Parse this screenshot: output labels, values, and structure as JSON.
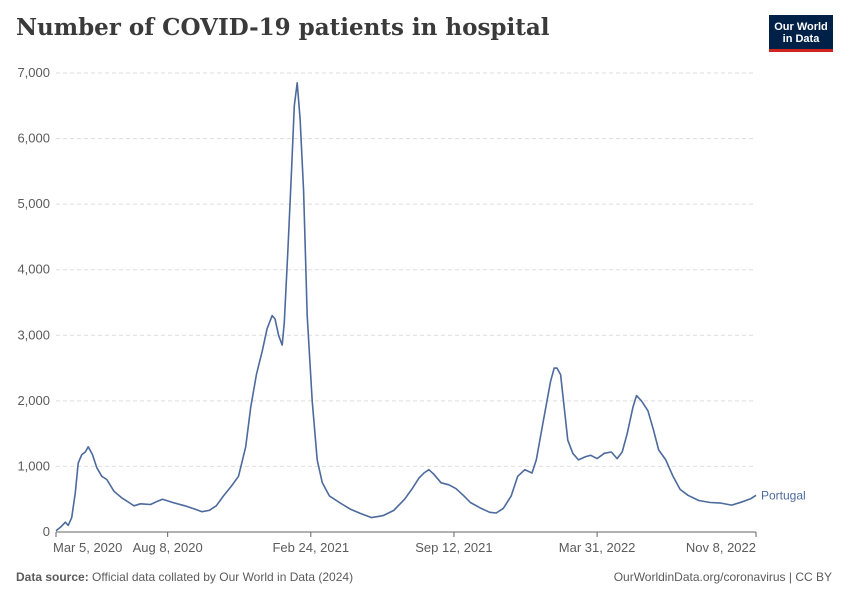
{
  "title": "Number of COVID-19 patients in hospital",
  "logo": {
    "line1": "Our World",
    "line2": "in Data"
  },
  "footer": {
    "source_label": "Data source:",
    "source_text": "Official data collated by Our World in Data (2024)",
    "right_text": "OurWorldinData.org/coronavirus | CC BY"
  },
  "colors": {
    "series": "#4c6a9c",
    "grid": "#dddddd",
    "axis": "#666666",
    "text": "#5b5b5b"
  },
  "chart_data": {
    "type": "line",
    "title": "Number of COVID-19 patients in hospital",
    "xlabel": "",
    "ylabel": "",
    "ylim": [
      0,
      7000
    ],
    "xlim": [
      "2020-03-05",
      "2022-11-08"
    ],
    "grid": true,
    "y_ticks": [
      0,
      1000,
      2000,
      3000,
      4000,
      5000,
      6000,
      7000
    ],
    "y_tick_labels": [
      "0",
      "1,000",
      "2,000",
      "3,000",
      "4,000",
      "5,000",
      "6,000",
      "7,000"
    ],
    "x_ticks": [
      "2020-03-05",
      "2020-08-08",
      "2021-02-24",
      "2021-09-12",
      "2022-03-31",
      "2022-11-08"
    ],
    "x_tick_labels": [
      "Mar 5, 2020",
      "Aug 8, 2020",
      "Feb 24, 2021",
      "Sep 12, 2021",
      "Mar 31, 2022",
      "Nov 8, 2022"
    ],
    "series": [
      {
        "name": "Portugal",
        "points": [
          [
            "2020-03-05",
            20
          ],
          [
            "2020-03-12",
            80
          ],
          [
            "2020-03-18",
            150
          ],
          [
            "2020-03-22",
            100
          ],
          [
            "2020-03-27",
            220
          ],
          [
            "2020-04-01",
            600
          ],
          [
            "2020-04-05",
            1050
          ],
          [
            "2020-04-10",
            1180
          ],
          [
            "2020-04-15",
            1220
          ],
          [
            "2020-04-19",
            1300
          ],
          [
            "2020-04-25",
            1180
          ],
          [
            "2020-05-01",
            980
          ],
          [
            "2020-05-08",
            850
          ],
          [
            "2020-05-15",
            800
          ],
          [
            "2020-05-25",
            620
          ],
          [
            "2020-06-05",
            520
          ],
          [
            "2020-06-15",
            450
          ],
          [
            "2020-06-22",
            400
          ],
          [
            "2020-07-01",
            430
          ],
          [
            "2020-07-15",
            420
          ],
          [
            "2020-07-25",
            470
          ],
          [
            "2020-08-01",
            500
          ],
          [
            "2020-08-15",
            450
          ],
          [
            "2020-09-01",
            400
          ],
          [
            "2020-09-15",
            350
          ],
          [
            "2020-09-25",
            310
          ],
          [
            "2020-10-05",
            330
          ],
          [
            "2020-10-15",
            400
          ],
          [
            "2020-10-25",
            550
          ],
          [
            "2020-11-05",
            700
          ],
          [
            "2020-11-15",
            850
          ],
          [
            "2020-11-25",
            1300
          ],
          [
            "2020-12-02",
            1900
          ],
          [
            "2020-12-10",
            2400
          ],
          [
            "2020-12-18",
            2750
          ],
          [
            "2020-12-25",
            3100
          ],
          [
            "2021-01-01",
            3300
          ],
          [
            "2021-01-05",
            3250
          ],
          [
            "2021-01-10",
            3000
          ],
          [
            "2021-01-15",
            2850
          ],
          [
            "2021-01-18",
            3200
          ],
          [
            "2021-01-23",
            4300
          ],
          [
            "2021-01-28",
            5500
          ],
          [
            "2021-02-01",
            6500
          ],
          [
            "2021-02-05",
            6850
          ],
          [
            "2021-02-09",
            6300
          ],
          [
            "2021-02-14",
            5200
          ],
          [
            "2021-02-19",
            3300
          ],
          [
            "2021-02-26",
            2000
          ],
          [
            "2021-03-05",
            1100
          ],
          [
            "2021-03-12",
            750
          ],
          [
            "2021-03-22",
            550
          ],
          [
            "2021-04-05",
            450
          ],
          [
            "2021-04-20",
            350
          ],
          [
            "2021-05-05",
            280
          ],
          [
            "2021-05-20",
            220
          ],
          [
            "2021-06-05",
            250
          ],
          [
            "2021-06-20",
            330
          ],
          [
            "2021-07-05",
            500
          ],
          [
            "2021-07-15",
            650
          ],
          [
            "2021-07-25",
            820
          ],
          [
            "2021-08-01",
            900
          ],
          [
            "2021-08-08",
            950
          ],
          [
            "2021-08-15",
            880
          ],
          [
            "2021-08-25",
            750
          ],
          [
            "2021-09-05",
            720
          ],
          [
            "2021-09-15",
            660
          ],
          [
            "2021-09-25",
            560
          ],
          [
            "2021-10-05",
            450
          ],
          [
            "2021-10-20",
            360
          ],
          [
            "2021-11-01",
            300
          ],
          [
            "2021-11-10",
            290
          ],
          [
            "2021-11-20",
            360
          ],
          [
            "2021-12-01",
            550
          ],
          [
            "2021-12-10",
            850
          ],
          [
            "2021-12-20",
            950
          ],
          [
            "2021-12-30",
            900
          ],
          [
            "2022-01-05",
            1100
          ],
          [
            "2022-01-15",
            1700
          ],
          [
            "2022-01-25",
            2300
          ],
          [
            "2022-01-30",
            2500
          ],
          [
            "2022-02-03",
            2500
          ],
          [
            "2022-02-08",
            2400
          ],
          [
            "2022-02-13",
            1900
          ],
          [
            "2022-02-18",
            1400
          ],
          [
            "2022-02-25",
            1200
          ],
          [
            "2022-03-05",
            1100
          ],
          [
            "2022-03-15",
            1150
          ],
          [
            "2022-03-22",
            1170
          ],
          [
            "2022-03-31",
            1120
          ],
          [
            "2022-04-10",
            1200
          ],
          [
            "2022-04-20",
            1220
          ],
          [
            "2022-04-28",
            1120
          ],
          [
            "2022-05-05",
            1220
          ],
          [
            "2022-05-12",
            1500
          ],
          [
            "2022-05-20",
            1900
          ],
          [
            "2022-05-25",
            2080
          ],
          [
            "2022-06-01",
            2000
          ],
          [
            "2022-06-10",
            1850
          ],
          [
            "2022-06-18",
            1550
          ],
          [
            "2022-06-25",
            1250
          ],
          [
            "2022-07-05",
            1100
          ],
          [
            "2022-07-15",
            850
          ],
          [
            "2022-07-25",
            650
          ],
          [
            "2022-08-05",
            560
          ],
          [
            "2022-08-20",
            480
          ],
          [
            "2022-09-05",
            450
          ],
          [
            "2022-09-20",
            440
          ],
          [
            "2022-10-05",
            410
          ],
          [
            "2022-10-20",
            460
          ],
          [
            "2022-11-01",
            510
          ],
          [
            "2022-11-08",
            560
          ]
        ]
      }
    ]
  }
}
